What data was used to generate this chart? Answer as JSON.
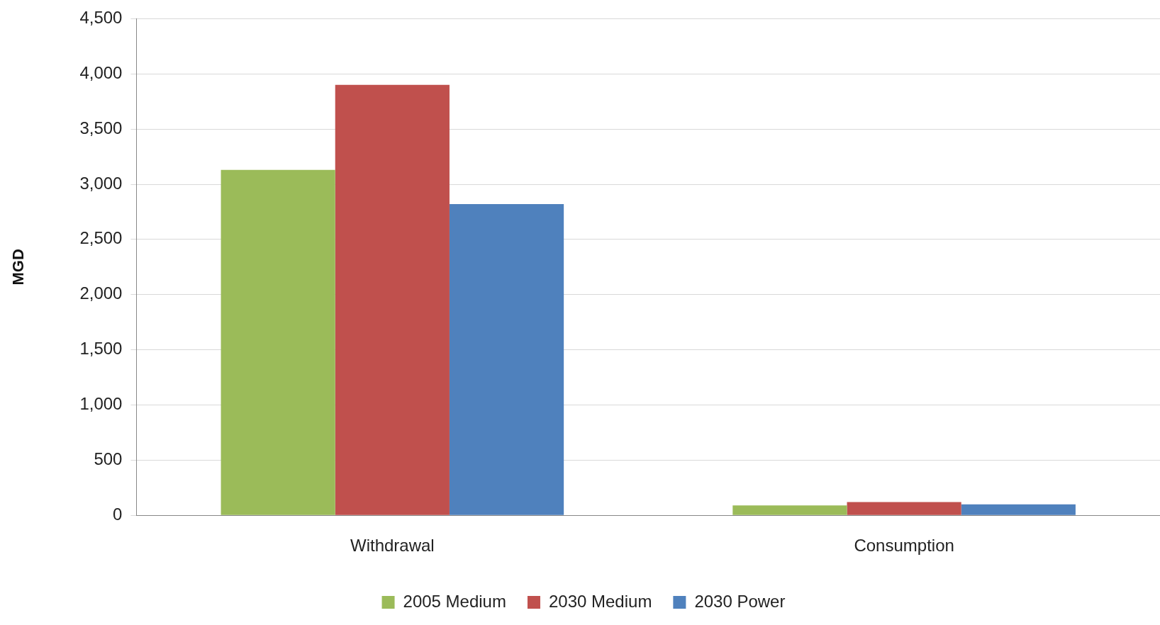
{
  "chart_data": {
    "type": "bar",
    "ylabel": "MGD",
    "categories": [
      "Withdrawal",
      "Consumption"
    ],
    "series": [
      {
        "name": "2005 Medium",
        "color": "#9bbb59",
        "values": [
          3130,
          90
        ]
      },
      {
        "name": "2030 Medium",
        "color": "#c0504d",
        "values": [
          3900,
          120
        ]
      },
      {
        "name": "2030 Power",
        "color": "#4f81bd",
        "values": [
          2820,
          100
        ]
      }
    ],
    "ylim": [
      0,
      4500
    ],
    "yticks": [
      {
        "value": 0,
        "label": "0"
      },
      {
        "value": 500,
        "label": "500"
      },
      {
        "value": 1000,
        "label": "1,000"
      },
      {
        "value": 1500,
        "label": "1,500"
      },
      {
        "value": 2000,
        "label": "2,000"
      },
      {
        "value": 2500,
        "label": "2,500"
      },
      {
        "value": 3000,
        "label": "3,000"
      },
      {
        "value": 3500,
        "label": "3,500"
      },
      {
        "value": 4000,
        "label": "4,000"
      },
      {
        "value": 4500,
        "label": "4,500"
      }
    ],
    "grid": "y",
    "legend": "bottom"
  }
}
